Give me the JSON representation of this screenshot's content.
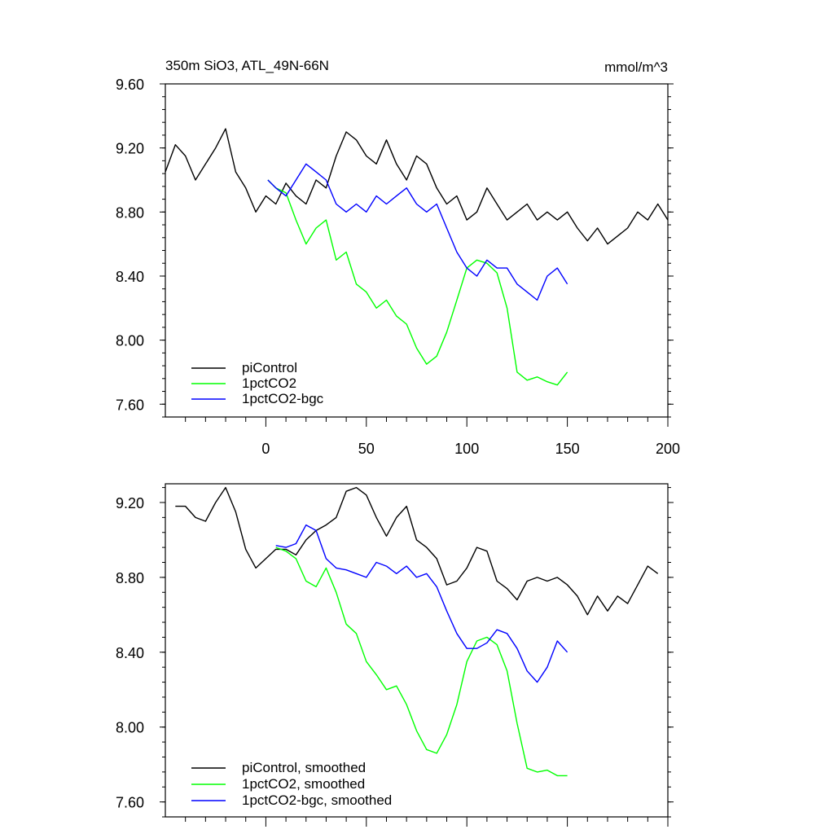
{
  "chart_data": [
    {
      "type": "line",
      "title": "350m SiO3, ATL_49N-66N",
      "units": "mmol/m^3",
      "xlim": [
        -50,
        200
      ],
      "ylim": [
        7.52,
        9.6
      ],
      "x_ticks": [
        0,
        50,
        100,
        150,
        200
      ],
      "x_tick_labels": [
        "0",
        "50",
        "100",
        "150",
        "200"
      ],
      "y_ticks": [
        7.6,
        8.0,
        8.4,
        8.8,
        9.2,
        9.6
      ],
      "y_tick_labels": [
        "7.60",
        "8.00",
        "8.40",
        "8.80",
        "9.20",
        "9.60"
      ],
      "legend_position": "bottom-left",
      "series": [
        {
          "name": "piControl",
          "color": "#000000",
          "x": [
            -50,
            -45,
            -40,
            -35,
            -30,
            -25,
            -20,
            -15,
            -10,
            -5,
            0,
            5,
            10,
            15,
            20,
            25,
            30,
            35,
            40,
            45,
            50,
            55,
            60,
            65,
            70,
            75,
            80,
            85,
            90,
            95,
            100,
            105,
            110,
            115,
            120,
            125,
            130,
            135,
            140,
            145,
            150,
            155,
            160,
            165,
            170,
            175,
            180,
            185,
            190,
            195,
            200
          ],
          "values": [
            9.05,
            9.22,
            9.15,
            9.0,
            9.1,
            9.2,
            9.32,
            9.05,
            8.95,
            8.8,
            8.9,
            8.85,
            8.98,
            8.9,
            8.85,
            9.0,
            8.95,
            9.15,
            9.3,
            9.25,
            9.15,
            9.1,
            9.25,
            9.1,
            9.0,
            9.15,
            9.1,
            8.95,
            8.85,
            8.9,
            8.75,
            8.8,
            8.95,
            8.85,
            8.75,
            8.8,
            8.85,
            8.75,
            8.8,
            8.75,
            8.8,
            8.7,
            8.62,
            8.7,
            8.6,
            8.65,
            8.7,
            8.8,
            8.75,
            8.85,
            8.75
          ]
        },
        {
          "name": "1pctCO2",
          "color": "#00ff00",
          "x": [
            1,
            5,
            10,
            15,
            20,
            25,
            30,
            35,
            40,
            45,
            50,
            55,
            60,
            65,
            70,
            75,
            80,
            85,
            90,
            95,
            100,
            105,
            110,
            115,
            120,
            125,
            130,
            135,
            140,
            145,
            150
          ],
          "values": [
            9.0,
            8.95,
            8.92,
            8.75,
            8.6,
            8.7,
            8.75,
            8.5,
            8.55,
            8.35,
            8.3,
            8.2,
            8.25,
            8.15,
            8.1,
            7.95,
            7.85,
            7.9,
            8.05,
            8.25,
            8.45,
            8.5,
            8.48,
            8.42,
            8.2,
            7.8,
            7.75,
            7.77,
            7.74,
            7.72,
            7.8
          ]
        },
        {
          "name": "1pctCO2-bgc",
          "color": "#0000ff",
          "x": [
            1,
            5,
            10,
            15,
            20,
            25,
            30,
            35,
            40,
            45,
            50,
            55,
            60,
            65,
            70,
            75,
            80,
            85,
            90,
            95,
            100,
            105,
            110,
            115,
            120,
            125,
            130,
            135,
            140,
            145,
            150
          ],
          "values": [
            9.0,
            8.95,
            8.9,
            9.0,
            9.1,
            9.05,
            9.0,
            8.85,
            8.8,
            8.85,
            8.8,
            8.9,
            8.85,
            8.9,
            8.95,
            8.85,
            8.8,
            8.85,
            8.7,
            8.55,
            8.45,
            8.4,
            8.5,
            8.45,
            8.45,
            8.35,
            8.3,
            8.25,
            8.4,
            8.45,
            8.35
          ]
        }
      ]
    },
    {
      "type": "line",
      "xlim": [
        -50,
        200
      ],
      "ylim": [
        7.52,
        9.3
      ],
      "y_ticks": [
        7.6,
        8.0,
        8.4,
        8.8,
        9.2
      ],
      "y_tick_labels": [
        "7.60",
        "8.00",
        "8.40",
        "8.80",
        "9.20"
      ],
      "legend_position": "bottom-left",
      "series": [
        {
          "name": "piControl, smoothed",
          "color": "#000000",
          "x": [
            -45,
            -40,
            -35,
            -30,
            -25,
            -20,
            -15,
            -10,
            -5,
            0,
            5,
            10,
            15,
            20,
            25,
            30,
            35,
            40,
            45,
            50,
            55,
            60,
            65,
            70,
            75,
            80,
            85,
            90,
            95,
            100,
            105,
            110,
            115,
            120,
            125,
            130,
            135,
            140,
            145,
            150,
            155,
            160,
            165,
            170,
            175,
            180,
            185,
            190,
            195
          ],
          "values": [
            9.18,
            9.18,
            9.12,
            9.1,
            9.2,
            9.28,
            9.15,
            8.95,
            8.85,
            8.9,
            8.95,
            8.95,
            8.92,
            9.0,
            9.05,
            9.08,
            9.12,
            9.26,
            9.28,
            9.24,
            9.12,
            9.02,
            9.12,
            9.18,
            9.0,
            8.96,
            8.9,
            8.76,
            8.78,
            8.85,
            8.96,
            8.94,
            8.78,
            8.74,
            8.68,
            8.78,
            8.8,
            8.78,
            8.8,
            8.76,
            8.7,
            8.6,
            8.7,
            8.62,
            8.7,
            8.66,
            8.76,
            8.86,
            8.82
          ]
        },
        {
          "name": "1pctCO2, smoothed",
          "color": "#00ff00",
          "x": [
            5,
            10,
            15,
            20,
            25,
            30,
            35,
            40,
            45,
            50,
            55,
            60,
            65,
            70,
            75,
            80,
            85,
            90,
            95,
            100,
            105,
            110,
            115,
            120,
            125,
            130,
            135,
            140,
            145,
            150
          ],
          "values": [
            8.96,
            8.94,
            8.9,
            8.78,
            8.75,
            8.85,
            8.72,
            8.55,
            8.5,
            8.35,
            8.28,
            8.2,
            8.22,
            8.12,
            7.98,
            7.88,
            7.86,
            7.96,
            8.12,
            8.35,
            8.46,
            8.48,
            8.44,
            8.3,
            8.02,
            7.78,
            7.76,
            7.77,
            7.74,
            7.74
          ]
        },
        {
          "name": "1pctCO2-bgc, smoothed",
          "color": "#0000ff",
          "x": [
            5,
            10,
            15,
            20,
            25,
            30,
            35,
            40,
            45,
            50,
            55,
            60,
            65,
            70,
            75,
            80,
            85,
            90,
            95,
            100,
            105,
            110,
            115,
            120,
            125,
            130,
            135,
            140,
            145,
            150
          ],
          "values": [
            8.97,
            8.96,
            8.98,
            9.08,
            9.05,
            8.9,
            8.85,
            8.84,
            8.82,
            8.8,
            8.88,
            8.86,
            8.82,
            8.86,
            8.8,
            8.82,
            8.75,
            8.62,
            8.5,
            8.42,
            8.42,
            8.45,
            8.52,
            8.5,
            8.42,
            8.3,
            8.24,
            8.32,
            8.46,
            8.4
          ]
        }
      ]
    }
  ]
}
